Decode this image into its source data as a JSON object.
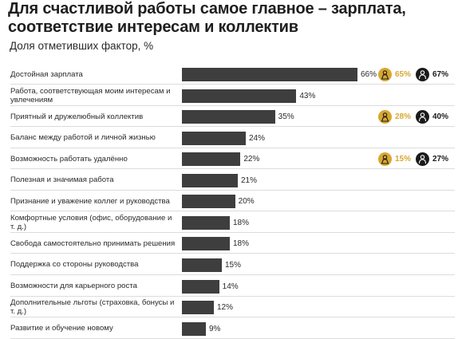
{
  "title": "Для счастливой работы самое главное – зарплата, соответствие интересам и коллектив",
  "subtitle": "Доля отметивших фактор, %",
  "colors": {
    "bar": "#3e3e3e",
    "female": "#d8a732",
    "male": "#1b1b1b"
  },
  "icons": {
    "female": "woman-icon",
    "male": "man-icon"
  },
  "chart_data": {
    "type": "bar",
    "orientation": "horizontal",
    "title": "Для счастливой работы самое главное – зарплата, соответствие интересам и коллектив",
    "subtitle": "Доля отметивших фактор, %",
    "unit": "%",
    "xlim": [
      0,
      66
    ],
    "categories": [
      "Достойная зарплата",
      "Работа, соответствующая моим интересам и увлечениям",
      "Приятный и дружелюбный коллектив",
      "Баланс между работой и личной жизнью",
      "Возможность работать удалённо",
      "Полезная и значимая работа",
      "Признание и уважение коллег и руководства",
      "Комфортные условия (офис, оборудование и т. д.)",
      "Свобода самостоятельно принимать решения",
      "Поддержка со стороны руководства",
      "Возможности для карьерного роста",
      "Дополнительные льготы (страховка, бонусы и т. д.)",
      "Развитие и обучение новому"
    ],
    "values": [
      66,
      43,
      35,
      24,
      22,
      21,
      20,
      18,
      18,
      15,
      14,
      12,
      9
    ],
    "value_labels": [
      "66%",
      "43%",
      "35%",
      "24%",
      "22%",
      "21%",
      "20%",
      "18%",
      "18%",
      "15%",
      "14%",
      "12%",
      "9%"
    ],
    "gender_breakdown": [
      {
        "category_index": 0,
        "female": 65,
        "female_label": "65%",
        "male": 67,
        "male_label": "67%"
      },
      {
        "category_index": 2,
        "female": 28,
        "female_label": "28%",
        "male": 40,
        "male_label": "40%"
      },
      {
        "category_index": 4,
        "female": 15,
        "female_label": "15%",
        "male": 27,
        "male_label": "27%"
      }
    ]
  }
}
